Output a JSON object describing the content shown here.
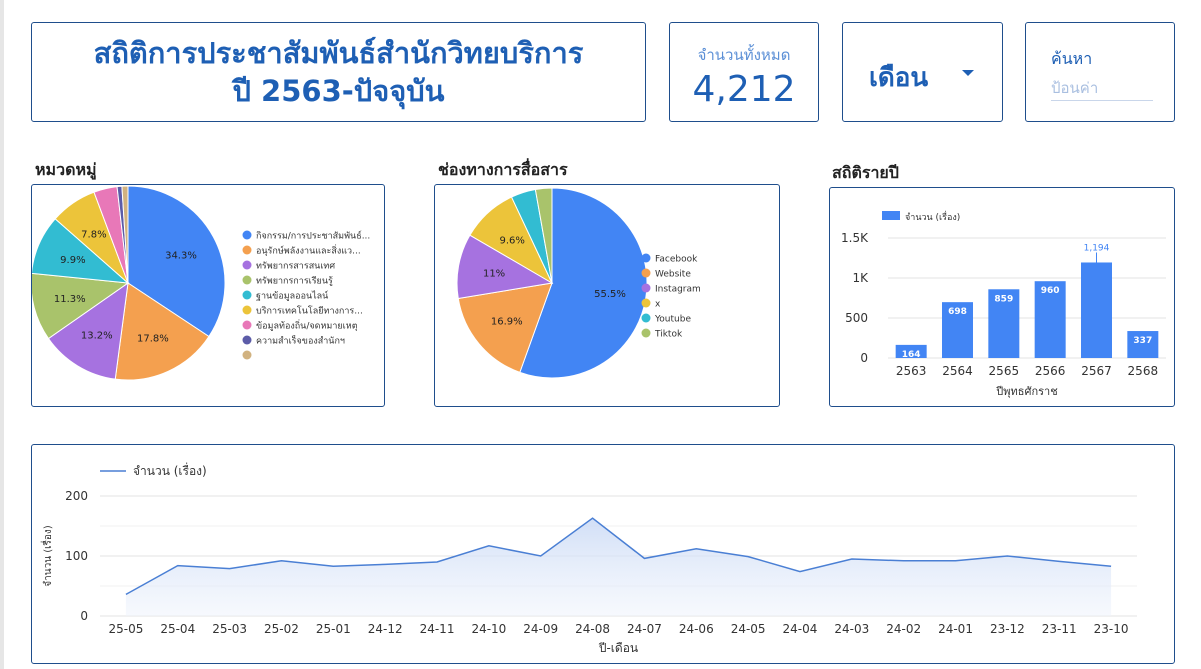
{
  "header": {
    "title_line1": "สถิติการประชาสัมพันธ์สำนักวิทยบริการ",
    "title_line2": "ปี 2563-ปัจจุบัน",
    "total_label": "จำนวนทั้งหมด",
    "total_value": "4,212",
    "month_filter_label": "เดือน",
    "search_label": "ค้นหา",
    "search_placeholder": "ป้อนค่า"
  },
  "colors": {
    "accent": "#1e5fb4",
    "border": "#1f4e8c",
    "bar": "#4285f4",
    "line": "#4a7fd4"
  },
  "chart_data": [
    {
      "type": "pie",
      "title": "หมวดหมู่",
      "labels": [
        "กิจกรรม/การประชาสัมพันธ์...",
        "อนุรักษ์พลังงานและสิ่งแว...",
        "ทรัพยากรสารสนเทศ",
        "ทรัพยากรการเรียนรู้",
        "ฐานข้อมูลออนไลน์",
        "บริการเทคโนโลยีทางการ...",
        "ข้อมูลท้องถิ่น/จดหมายเหตุ",
        "ความสำเร็จของสำนักฯ",
        ""
      ],
      "values": [
        34.3,
        17.8,
        13.2,
        11.3,
        9.9,
        7.8,
        3.9,
        0.8,
        1.0
      ],
      "value_labels": [
        "34.3%",
        "17.8%",
        "13.2%",
        "11.3%",
        "9.9%",
        "7.8%",
        "",
        "",
        ""
      ],
      "colors": [
        "#4285f4",
        "#f4a04f",
        "#a672e0",
        "#a9c36b",
        "#32bcd2",
        "#ecc43a",
        "#e878b8",
        "#5c5ca8",
        "#d1b280"
      ],
      "legend": "right"
    },
    {
      "type": "pie",
      "title": "ช่องทางการสื่อสาร",
      "labels": [
        "Facebook",
        "Website",
        "Instagram",
        "x",
        "Youtube",
        "Tiktok"
      ],
      "values": [
        55.5,
        16.9,
        11,
        9.6,
        4.2,
        2.8
      ],
      "value_labels": [
        "55.5%",
        "16.9%",
        "11%",
        "9.6%",
        "",
        ""
      ],
      "colors": [
        "#4285f4",
        "#f4a04f",
        "#a672e0",
        "#ecc43a",
        "#32bcd2",
        "#a9c36b"
      ],
      "legend": "right"
    },
    {
      "type": "bar",
      "title": "สถิติรายปี",
      "series_name": "จำนวน (เรื่อง)",
      "categories": [
        "2563",
        "2564",
        "2565",
        "2566",
        "2567",
        "2568"
      ],
      "values": [
        164,
        698,
        859,
        960,
        1194,
        337
      ],
      "value_labels": [
        "164",
        "698",
        "859",
        "960",
        "1,194",
        "337"
      ],
      "xlabel": "ปีพุทธศักราช",
      "ylim": [
        0,
        1500
      ],
      "yticks": [
        0,
        500,
        1000,
        1500
      ],
      "ytick_labels": [
        "0",
        "500",
        "1K",
        "1.5K"
      ],
      "legend": "top-left"
    },
    {
      "type": "area",
      "series_name": "จำนวน (เรื่อง)",
      "categories": [
        "25-05",
        "25-04",
        "25-03",
        "25-02",
        "25-01",
        "24-12",
        "24-11",
        "24-10",
        "24-09",
        "24-08",
        "24-07",
        "24-06",
        "24-05",
        "24-04",
        "24-03",
        "24-02",
        "24-01",
        "23-12",
        "23-11",
        "23-10"
      ],
      "values": [
        36,
        84,
        79,
        92,
        83,
        86,
        90,
        117,
        100,
        163,
        96,
        112,
        99,
        74,
        95,
        92,
        92,
        100,
        91,
        83
      ],
      "xlabel": "ปี-เดือน",
      "ylabel": "จำนวน (เรื่อง)",
      "ylim": [
        0,
        200
      ],
      "yticks": [
        0,
        100,
        200
      ],
      "legend": "top-left"
    }
  ]
}
